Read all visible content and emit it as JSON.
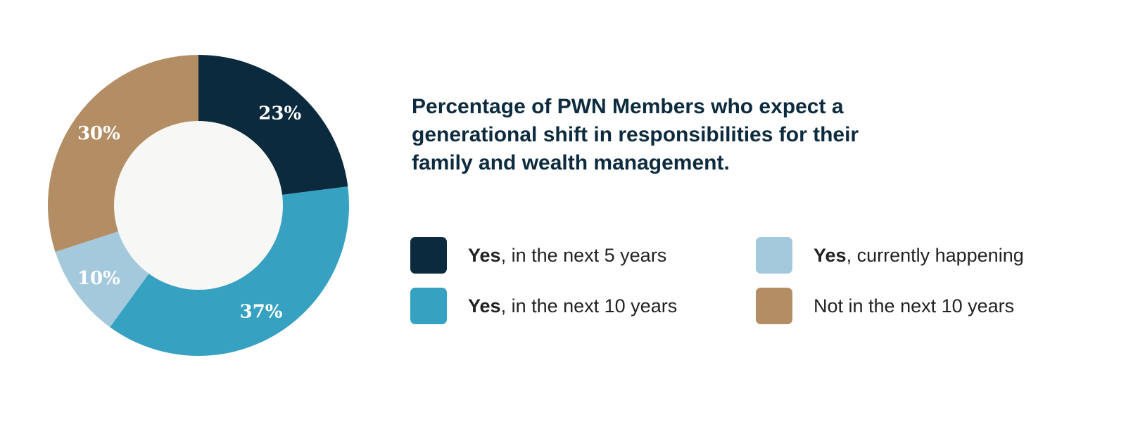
{
  "chart_data": {
    "type": "pie",
    "donut": true,
    "title": "Percentage of PWN Members who expect a generational shift in responsibilities for their family and wealth management.",
    "slices": [
      {
        "label_bold": "Yes",
        "label_rest": ", in the next 5 years",
        "value": 23,
        "data_label": "23%",
        "color": "#0b2a3d"
      },
      {
        "label_bold": "Yes",
        "label_rest": ", in the next 10 years",
        "value": 37,
        "data_label": "37%",
        "color": "#36a1c1"
      },
      {
        "label_bold": "Yes",
        "label_rest": ", currently happening",
        "value": 10,
        "data_label": "10%",
        "color": "#a4c9dc"
      },
      {
        "label_bold": "",
        "label_rest": "Not in the next 10 years",
        "value": 30,
        "data_label": "30%",
        "color": "#b38d63"
      }
    ],
    "center_color": "#f7f7f5",
    "legend_placement": "right"
  }
}
